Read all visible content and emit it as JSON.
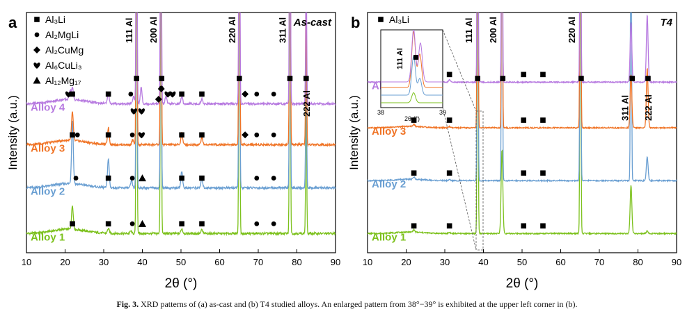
{
  "figure": {
    "caption_label": "Fig. 3.",
    "caption_text": "XRD patterns of (a) as-cast and (b) T4 studied alloys. An enlarged pattern from 38°−39° is exhibited at the upper left corner in (b)."
  },
  "colors": {
    "Alloy 1": "#7cc11c",
    "Alloy 2": "#6a9fd2",
    "Alloy 3": "#f07426",
    "Alloy 4": "#b77ae0",
    "axis": "#000000"
  },
  "chart_data": [
    {
      "type": "line",
      "panel_letter": "a",
      "title": "As-cast",
      "xlabel": "2θ (°)",
      "ylabel": "Intensity (a.u.)",
      "xlim": [
        10,
        90
      ],
      "xticks": [
        10,
        20,
        30,
        40,
        50,
        60,
        70,
        80,
        90
      ],
      "ylim": [
        0,
        100
      ],
      "legend": [
        {
          "symbol": "square",
          "phase": "Al₃Li"
        },
        {
          "symbol": "circle",
          "phase": "Al₂MgLi"
        },
        {
          "symbol": "diamond",
          "phase": "Al₂CuMg"
        },
        {
          "symbol": "heart",
          "phase": "Al₆CuLi₃"
        },
        {
          "symbol": "triangle",
          "phase": "Al₁₂Mg₁₇"
        }
      ],
      "series": [
        {
          "name": "Alloy 1",
          "baseline": 8,
          "peaks": [
            [
              21.9,
              10
            ],
            [
              31.2,
              2
            ],
            [
              37.0,
              1
            ],
            [
              38.5,
              150
            ],
            [
              44.8,
              150
            ],
            [
              50.2,
              2
            ],
            [
              55.4,
              1.5
            ],
            [
              65.1,
              150
            ],
            [
              78.2,
              150
            ],
            [
              82.4,
              60
            ]
          ]
        },
        {
          "name": "Alloy 2",
          "baseline": 27,
          "peaks": [
            [
              21.9,
              26
            ],
            [
              31.2,
              12
            ],
            [
              37.2,
              3
            ],
            [
              38.5,
              150
            ],
            [
              44.8,
              150
            ],
            [
              50.2,
              7
            ],
            [
              55.4,
              4
            ],
            [
              65.1,
              150
            ],
            [
              78.2,
              150
            ],
            [
              82.4,
              60
            ]
          ]
        },
        {
          "name": "Alloy 3",
          "baseline": 45,
          "peaks": [
            [
              21.9,
              12
            ],
            [
              31.2,
              7
            ],
            [
              37.5,
              2
            ],
            [
              38.5,
              150
            ],
            [
              44.8,
              150
            ],
            [
              50.2,
              5
            ],
            [
              55.4,
              3
            ],
            [
              65.1,
              150
            ],
            [
              78.2,
              150
            ],
            [
              82.4,
              60
            ]
          ]
        },
        {
          "name": "Alloy 4",
          "baseline": 62,
          "peaks": [
            [
              21.3,
              4
            ],
            [
              21.9,
              5
            ],
            [
              31.2,
              4
            ],
            [
              37.7,
              3
            ],
            [
              38.5,
              150
            ],
            [
              39.7,
              7
            ],
            [
              44.8,
              150
            ],
            [
              46.1,
              3
            ],
            [
              50.2,
              3
            ],
            [
              55.4,
              2
            ],
            [
              65.1,
              150
            ],
            [
              78.2,
              150
            ],
            [
              82.4,
              60
            ]
          ]
        }
      ],
      "markers": [
        {
          "x": 21.9,
          "alloy": "Alloy 1",
          "symbol": "square"
        },
        {
          "x": 31.2,
          "alloy": "Alloy 1",
          "symbol": "square"
        },
        {
          "x": 37.4,
          "alloy": "Alloy 1",
          "symbol": "circle"
        },
        {
          "x": 40.0,
          "alloy": "Alloy 1",
          "symbol": "triangle"
        },
        {
          "x": 50.2,
          "alloy": "Alloy 1",
          "symbol": "square"
        },
        {
          "x": 55.4,
          "alloy": "Alloy 1",
          "symbol": "square"
        },
        {
          "x": 69.6,
          "alloy": "Alloy 1",
          "symbol": "circle"
        },
        {
          "x": 74.0,
          "alloy": "Alloy 1",
          "symbol": "circle"
        },
        {
          "x": 22.8,
          "alloy": "Alloy 2",
          "symbol": "circle"
        },
        {
          "x": 31.2,
          "alloy": "Alloy 2",
          "symbol": "square"
        },
        {
          "x": 37.4,
          "alloy": "Alloy 2",
          "symbol": "circle"
        },
        {
          "x": 40.0,
          "alloy": "Alloy 2",
          "symbol": "triangle"
        },
        {
          "x": 50.2,
          "alloy": "Alloy 2",
          "symbol": "square"
        },
        {
          "x": 55.4,
          "alloy": "Alloy 2",
          "symbol": "square"
        },
        {
          "x": 69.6,
          "alloy": "Alloy 2",
          "symbol": "circle"
        },
        {
          "x": 74.0,
          "alloy": "Alloy 2",
          "symbol": "circle"
        },
        {
          "x": 21.9,
          "alloy": "Alloy 3",
          "symbol": "square"
        },
        {
          "x": 23.2,
          "alloy": "Alloy 3",
          "symbol": "circle"
        },
        {
          "x": 31.2,
          "alloy": "Alloy 3",
          "symbol": "square"
        },
        {
          "x": 37.4,
          "alloy": "Alloy 3",
          "symbol": "circle"
        },
        {
          "x": 39.8,
          "alloy": "Alloy 3",
          "symbol": "heart"
        },
        {
          "x": 50.2,
          "alloy": "Alloy 3",
          "symbol": "square"
        },
        {
          "x": 55.4,
          "alloy": "Alloy 3",
          "symbol": "square"
        },
        {
          "x": 66.6,
          "alloy": "Alloy 3",
          "symbol": "diamond"
        },
        {
          "x": 69.6,
          "alloy": "Alloy 3",
          "symbol": "circle"
        },
        {
          "x": 74.0,
          "alloy": "Alloy 3",
          "symbol": "circle"
        },
        {
          "x": 20.9,
          "alloy": "Alloy 4",
          "symbol": "heart"
        },
        {
          "x": 21.9,
          "alloy": "Alloy 4",
          "symbol": "square"
        },
        {
          "x": 31.2,
          "alloy": "Alloy 4",
          "symbol": "square"
        },
        {
          "x": 37.0,
          "alloy": "Alloy 4",
          "symbol": "circle"
        },
        {
          "x": 37.8,
          "alloy": "Alloy 4",
          "symbol": "heart"
        },
        {
          "x": 39.8,
          "alloy": "Alloy 4",
          "symbol": "heart"
        },
        {
          "x": 44.2,
          "alloy": "Alloy 4",
          "symbol": "diamond"
        },
        {
          "x": 44.9,
          "alloy": "Alloy 4",
          "symbol": "diamond"
        },
        {
          "x": 44.9,
          "alloy": "Alloy 4",
          "symbol": "circle"
        },
        {
          "x": 45.0,
          "alloy": "Alloy 4",
          "symbol": "square"
        },
        {
          "x": 46.6,
          "alloy": "Alloy 4",
          "symbol": "heart"
        },
        {
          "x": 47.8,
          "alloy": "Alloy 4",
          "symbol": "heart"
        },
        {
          "x": 50.2,
          "alloy": "Alloy 4",
          "symbol": "square"
        },
        {
          "x": 55.4,
          "alloy": "Alloy 4",
          "symbol": "square"
        },
        {
          "x": 66.6,
          "alloy": "Alloy 4",
          "symbol": "diamond"
        },
        {
          "x": 69.6,
          "alloy": "Alloy 4",
          "symbol": "circle"
        },
        {
          "x": 74.0,
          "alloy": "Alloy 4",
          "symbol": "circle"
        },
        {
          "x": 38.5,
          "alloy": "top",
          "symbol": "square"
        },
        {
          "x": 65.1,
          "alloy": "top",
          "symbol": "square"
        },
        {
          "x": 78.2,
          "alloy": "top",
          "symbol": "square"
        },
        {
          "x": 82.4,
          "alloy": "top",
          "symbol": "square"
        }
      ],
      "peak_labels": [
        {
          "x": 38.5,
          "text": "111 Al"
        },
        {
          "x": 44.8,
          "text": "200 Al"
        },
        {
          "x": 65.1,
          "text": "220 Al"
        },
        {
          "x": 78.2,
          "text": "311 Al"
        },
        {
          "x": 82.4,
          "text": "222 Al"
        }
      ]
    },
    {
      "type": "line",
      "panel_letter": "b",
      "title": "T4",
      "xlabel": "2θ (°)",
      "ylabel": "Intensity (a.u.)",
      "xlim": [
        10,
        90
      ],
      "xticks": [
        10,
        20,
        30,
        40,
        50,
        60,
        70,
        80,
        90
      ],
      "ylim": [
        0,
        100
      ],
      "legend": [
        {
          "symbol": "square",
          "phase": "Al₃Li"
        }
      ],
      "series": [
        {
          "name": "Alloy 1",
          "baseline": 8,
          "peaks": [
            [
              22.0,
              1
            ],
            [
              31.2,
              0.5
            ],
            [
              38.5,
              150
            ],
            [
              44.8,
              35
            ],
            [
              65.1,
              150
            ],
            [
              78.2,
              20
            ],
            [
              82.4,
              1
            ]
          ]
        },
        {
          "name": "Alloy 2",
          "baseline": 30,
          "peaks": [
            [
              22.0,
              1
            ],
            [
              31.2,
              0.5
            ],
            [
              38.5,
              150
            ],
            [
              44.8,
              150
            ],
            [
              65.1,
              150
            ],
            [
              78.2,
              150
            ],
            [
              82.4,
              10
            ]
          ]
        },
        {
          "name": "Alloy 3",
          "baseline": 52,
          "peaks": [
            [
              22.0,
              1
            ],
            [
              31.2,
              0.5
            ],
            [
              38.5,
              150
            ],
            [
              44.8,
              150
            ],
            [
              65.1,
              150
            ],
            [
              78.2,
              22
            ],
            [
              82.4,
              25
            ]
          ]
        },
        {
          "name": "Alloy 4",
          "baseline": 71,
          "peaks": [
            [
              22.0,
              1.5
            ],
            [
              31.2,
              1
            ],
            [
              38.5,
              150
            ],
            [
              44.8,
              150
            ],
            [
              65.1,
              150
            ],
            [
              78.2,
              25
            ],
            [
              82.4,
              28
            ]
          ]
        }
      ],
      "markers": [
        {
          "x": 22.0,
          "alloy": "Alloy 1",
          "symbol": "square"
        },
        {
          "x": 31.2,
          "alloy": "Alloy 1",
          "symbol": "square"
        },
        {
          "x": 50.4,
          "alloy": "Alloy 1",
          "symbol": "square"
        },
        {
          "x": 55.4,
          "alloy": "Alloy 1",
          "symbol": "square"
        },
        {
          "x": 22.0,
          "alloy": "Alloy 2",
          "symbol": "square"
        },
        {
          "x": 31.2,
          "alloy": "Alloy 2",
          "symbol": "square"
        },
        {
          "x": 50.4,
          "alloy": "Alloy 2",
          "symbol": "square"
        },
        {
          "x": 55.4,
          "alloy": "Alloy 2",
          "symbol": "square"
        },
        {
          "x": 22.0,
          "alloy": "Alloy 3",
          "symbol": "square"
        },
        {
          "x": 31.2,
          "alloy": "Alloy 3",
          "symbol": "square"
        },
        {
          "x": 50.4,
          "alloy": "Alloy 3",
          "symbol": "square"
        },
        {
          "x": 55.4,
          "alloy": "Alloy 3",
          "symbol": "square"
        },
        {
          "x": 22.0,
          "alloy": "Alloy 4",
          "symbol": "square"
        },
        {
          "x": 31.2,
          "alloy": "Alloy 4",
          "symbol": "square"
        },
        {
          "x": 50.4,
          "alloy": "Alloy 4",
          "symbol": "square"
        },
        {
          "x": 55.4,
          "alloy": "Alloy 4",
          "symbol": "square"
        },
        {
          "x": 38.5,
          "alloy": "top",
          "symbol": "square"
        },
        {
          "x": 45.0,
          "alloy": "top",
          "symbol": "square"
        },
        {
          "x": 65.3,
          "alloy": "top",
          "symbol": "square"
        },
        {
          "x": 78.5,
          "alloy": "top",
          "symbol": "square"
        },
        {
          "x": 82.6,
          "alloy": "top",
          "symbol": "square"
        }
      ],
      "peak_labels": [
        {
          "x": 38.5,
          "text": "111 Al"
        },
        {
          "x": 44.8,
          "text": "200 Al"
        },
        {
          "x": 65.1,
          "text": "220 Al"
        },
        {
          "x": 78.2,
          "text": "311 Al"
        },
        {
          "x": 82.4,
          "text": "222 Al"
        }
      ],
      "inset": {
        "xlabel": "2θ (°)",
        "xlim": [
          38,
          39
        ],
        "xticks": [
          38,
          39
        ],
        "peak_label": "111 Al",
        "zoom_range": [
          38,
          39
        ],
        "series": [
          {
            "name": "Alloy 1",
            "peaks": [
              [
                38.53,
                0.18
              ]
            ]
          },
          {
            "name": "Alloy 2",
            "peaks": [
              [
                38.53,
                0.7
              ],
              [
                38.63,
                0.3
              ]
            ]
          },
          {
            "name": "Alloy 3",
            "peaks": [
              [
                38.53,
                1.0
              ],
              [
                38.63,
                0.6
              ]
            ]
          },
          {
            "name": "Alloy 4",
            "peaks": [
              [
                38.53,
                0.95
              ],
              [
                38.64,
                0.7
              ]
            ]
          }
        ]
      }
    }
  ]
}
